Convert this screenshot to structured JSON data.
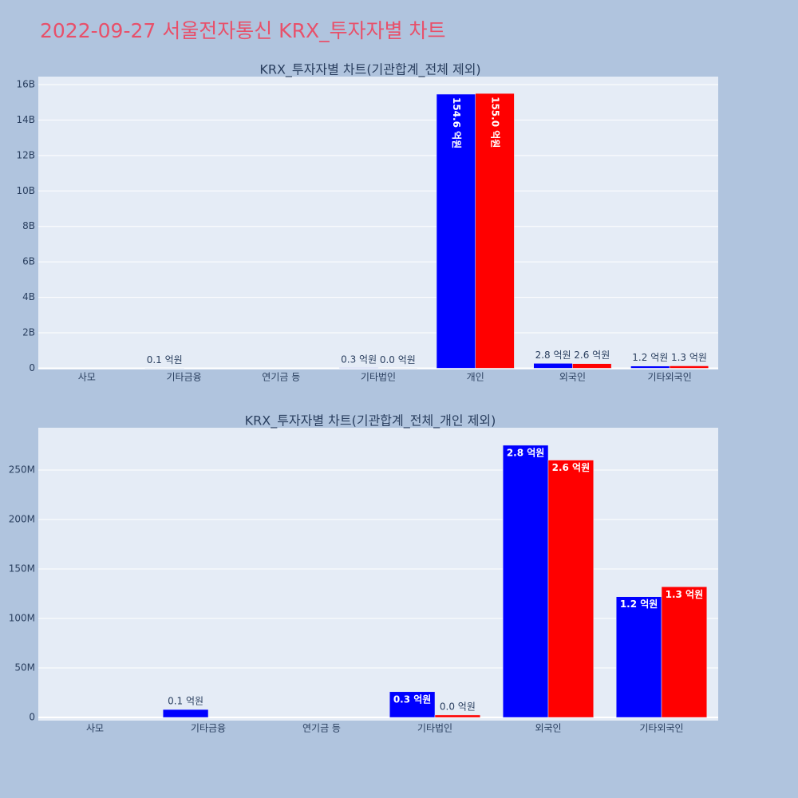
{
  "title": "2022-09-27 서울전자통신 KRX_투자자별 차트",
  "chart_data": [
    {
      "type": "bar",
      "title": "KRX_투자자별 차트(기관합계_전체 제외)",
      "categories": [
        "사모",
        "기타금융",
        "연기금 등",
        "기타법인",
        "개인",
        "외국인",
        "기타외국인"
      ],
      "series": [
        {
          "color": "#0000ff",
          "values": [
            0,
            8000000,
            0,
            26000000,
            15460000000,
            275000000,
            122000000
          ],
          "value_labels": [
            null,
            "0.1 억원",
            null,
            "0.3 억원",
            "154.6 억원",
            "2.8 억원",
            "1.2 억원"
          ]
        },
        {
          "color": "#ff0000",
          "values": [
            0,
            0,
            0,
            2500000,
            15500000000,
            260000000,
            132000000
          ],
          "value_labels": [
            null,
            null,
            null,
            "0.0 억원",
            "155.0 억원",
            "2.6 억원",
            "1.3 억원"
          ]
        }
      ],
      "ylim": [
        -70000000,
        16450000000
      ],
      "yticks": [
        0,
        {
          "value": 2000000000,
          "label": "2B"
        },
        {
          "value": 4000000000,
          "label": "4B"
        },
        {
          "value": 6000000000,
          "label": "6B"
        },
        {
          "value": 8000000000,
          "label": "8B"
        },
        {
          "value": 10000000000,
          "label": "10B"
        },
        {
          "value": 12000000000,
          "label": "12B"
        },
        {
          "value": 14000000000,
          "label": "14B"
        },
        {
          "value": 16000000000,
          "label": "16B"
        }
      ],
      "grid": true
    },
    {
      "type": "bar",
      "title": "KRX_투자자별 차트(기관합계_전체_개인 제외)",
      "categories": [
        "사모",
        "기타금융",
        "연기금 등",
        "기타법인",
        "외국인",
        "기타외국인"
      ],
      "series": [
        {
          "color": "#0000ff",
          "values": [
            0,
            8000000,
            0,
            26000000,
            275000000,
            122000000
          ],
          "value_labels": [
            null,
            "0.1 억원",
            null,
            "0.3 억원",
            "2.8 억원",
            "1.2 억원"
          ]
        },
        {
          "color": "#ff0000",
          "values": [
            0,
            0,
            0,
            2500000,
            260000000,
            132000000
          ],
          "value_labels": [
            null,
            null,
            null,
            "0.0 억원",
            "2.6 억원",
            "1.3 억원"
          ]
        }
      ],
      "ylim": [
        -3200000,
        292700000
      ],
      "yticks": [
        0,
        {
          "value": 50000000,
          "label": "50M"
        },
        {
          "value": 100000000,
          "label": "100M"
        },
        {
          "value": 150000000,
          "label": "150M"
        },
        {
          "value": 200000000,
          "label": "200M"
        },
        {
          "value": 250000000,
          "label": "250M"
        }
      ],
      "grid": true
    }
  ]
}
